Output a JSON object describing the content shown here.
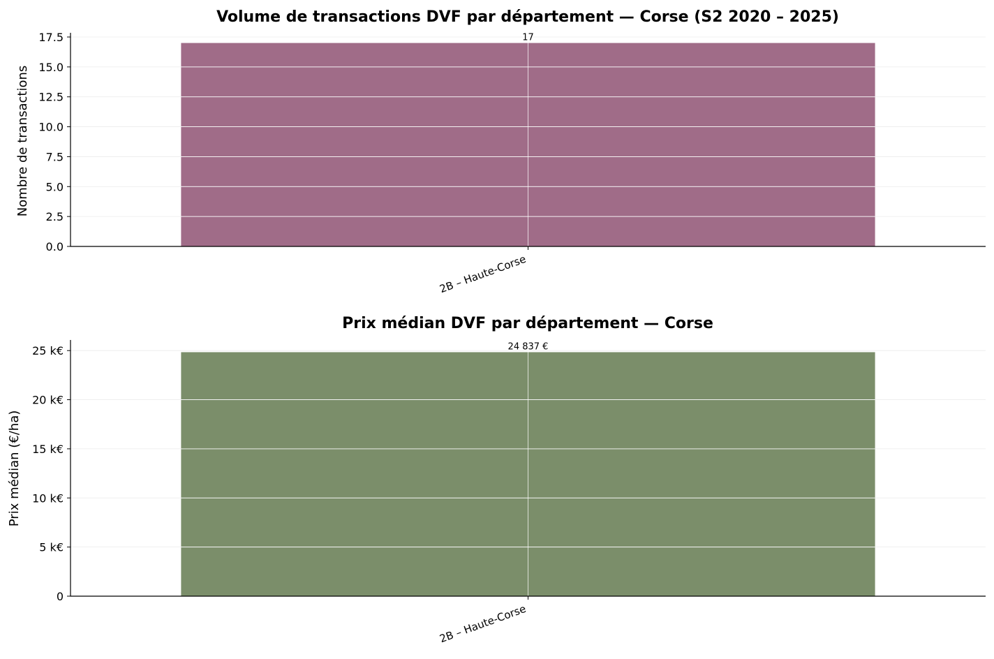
{
  "chart_data": [
    {
      "type": "bar",
      "title": "Volume de transactions DVF par département — Corse (S2 2020 – 2025)",
      "ylabel": "Nombre de transactions",
      "xlabel": "",
      "categories": [
        "2B – Haute-Corse"
      ],
      "values": [
        17
      ],
      "value_labels": [
        "17"
      ],
      "ylim": [
        0,
        17.85
      ],
      "yticks": [
        0,
        2.5,
        5,
        7.5,
        10,
        12.5,
        15,
        17.5
      ],
      "ytick_labels": [
        "0.0",
        "2.5",
        "5.0",
        "7.5",
        "10.0",
        "12.5",
        "15.0",
        "17.5"
      ],
      "bar_color": "#a06c88",
      "grid": true,
      "legend": "none"
    },
    {
      "type": "bar",
      "title": "Prix médian DVF par département — Corse",
      "ylabel": "Prix médian (€/ha)",
      "xlabel": "",
      "categories": [
        "2B – Haute-Corse"
      ],
      "values": [
        24837
      ],
      "value_labels": [
        "24 837 €"
      ],
      "ylim": [
        0,
        26079
      ],
      "yticks": [
        0,
        5000,
        10000,
        15000,
        20000,
        25000
      ],
      "ytick_labels": [
        "0",
        "5 k€",
        "10 k€",
        "15 k€",
        "20 k€",
        "25 k€"
      ],
      "bar_color": "#7b8e6a",
      "grid": true,
      "legend": "none"
    }
  ]
}
